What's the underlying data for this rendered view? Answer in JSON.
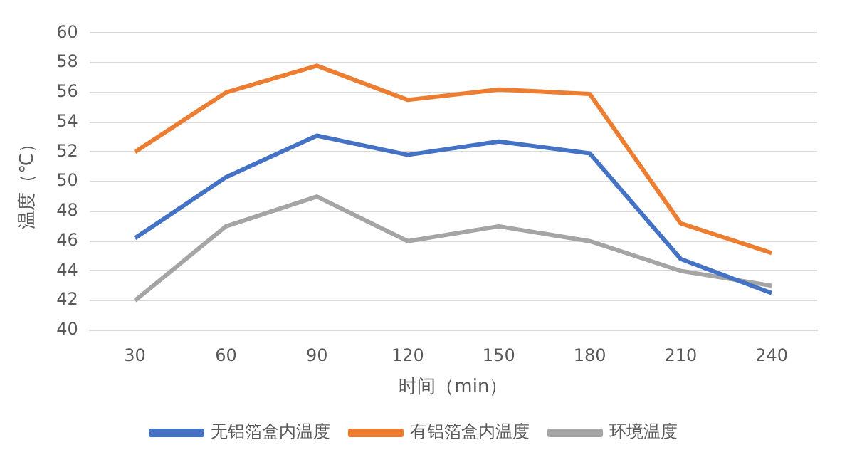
{
  "chart_data": {
    "type": "line",
    "xlabel": "时间（min）",
    "ylabel": "温度（℃）",
    "categories": [
      "30",
      "60",
      "90",
      "120",
      "150",
      "180",
      "210",
      "240"
    ],
    "series": [
      {
        "name": "无铝箔盒内温度",
        "color": "#4472c4",
        "values": [
          46.2,
          50.3,
          53.1,
          51.8,
          52.7,
          51.9,
          44.8,
          42.5
        ]
      },
      {
        "name": "有铝箔盒内温度",
        "color": "#ed7d31",
        "values": [
          52,
          56,
          57.8,
          55.5,
          56.2,
          55.9,
          47.2,
          45.2
        ]
      },
      {
        "name": "环境温度",
        "color": "#a5a5a5",
        "values": [
          42,
          47,
          49,
          46,
          47,
          46,
          44,
          43
        ]
      }
    ],
    "ylim": [
      40,
      60
    ],
    "yticks": [
      40,
      42,
      44,
      46,
      48,
      50,
      52,
      54,
      56,
      58,
      60
    ],
    "grid": "y",
    "legend": "bottom",
    "marker": "none",
    "line_style": "solid"
  }
}
